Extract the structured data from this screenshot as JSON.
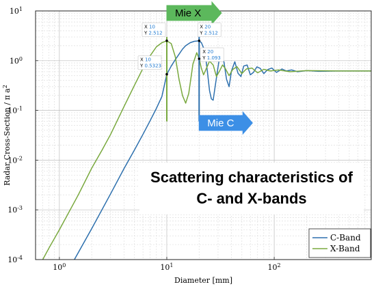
{
  "chart_data": {
    "type": "line",
    "title": "",
    "xlabel": "Diameter [mm]",
    "ylabel": "Radar Cross-Section / π a",
    "ylabel_exponent": "2",
    "xscale": "log",
    "yscale": "log",
    "xlim": [
      0.6,
      800
    ],
    "ylim": [
      0.0001,
      10
    ],
    "grid": true,
    "legend_position": "bottom-right",
    "x_ticks": [
      {
        "value": 1,
        "mantissa": "10",
        "exp": "0"
      },
      {
        "value": 10,
        "mantissa": "10",
        "exp": "1"
      },
      {
        "value": 100,
        "mantissa": "10",
        "exp": "2"
      }
    ],
    "y_ticks": [
      {
        "value": 0.0001,
        "mantissa": "10",
        "exp": "-4"
      },
      {
        "value": 0.001,
        "mantissa": "10",
        "exp": "-3"
      },
      {
        "value": 0.01,
        "mantissa": "10",
        "exp": "-2"
      },
      {
        "value": 0.1,
        "mantissa": "10",
        "exp": "-1"
      },
      {
        "value": 1,
        "mantissa": "10",
        "exp": "0"
      },
      {
        "value": 10,
        "mantissa": "10",
        "exp": "1"
      }
    ],
    "series": [
      {
        "name": "C-Band",
        "color": "#2c6fad",
        "points": [
          [
            1.38,
            0.0001
          ],
          [
            2,
            0.00042
          ],
          [
            3,
            0.0021
          ],
          [
            4,
            0.0068
          ],
          [
            5,
            0.016
          ],
          [
            6,
            0.033
          ],
          [
            7,
            0.062
          ],
          [
            8,
            0.11
          ],
          [
            9,
            0.19
          ],
          [
            10,
            0.5323
          ],
          [
            11,
            0.78
          ],
          [
            12,
            1.05
          ],
          [
            13,
            1.35
          ],
          [
            14,
            1.7
          ],
          [
            15,
            2.0
          ],
          [
            16.5,
            2.3
          ],
          [
            18,
            2.45
          ],
          [
            20,
            2.512
          ],
          [
            21,
            2.3
          ],
          [
            22,
            1.8
          ],
          [
            23,
            1.2
          ],
          [
            24,
            0.55
          ],
          [
            25,
            0.25
          ],
          [
            26,
            0.17
          ],
          [
            27,
            0.16
          ],
          [
            28.5,
            0.35
          ],
          [
            30.5,
            0.95
          ],
          [
            32.5,
            1.2
          ],
          [
            34,
            0.95
          ],
          [
            36,
            0.42
          ],
          [
            38,
            0.3
          ],
          [
            40,
            0.62
          ],
          [
            43,
            0.95
          ],
          [
            46,
            0.56
          ],
          [
            49,
            0.48
          ],
          [
            52,
            0.78
          ],
          [
            56,
            0.82
          ],
          [
            60,
            0.52
          ],
          [
            64,
            0.58
          ],
          [
            69,
            0.75
          ],
          [
            74,
            0.7
          ],
          [
            80,
            0.55
          ],
          [
            87,
            0.66
          ],
          [
            95,
            0.71
          ],
          [
            105,
            0.58
          ],
          [
            118,
            0.68
          ],
          [
            130,
            0.62
          ],
          [
            145,
            0.65
          ],
          [
            165,
            0.6
          ],
          [
            200,
            0.63
          ],
          [
            260,
            0.61
          ],
          [
            400,
            0.62
          ],
          [
            800,
            0.62
          ]
        ]
      },
      {
        "name": "X-Band",
        "color": "#78a83d",
        "points": [
          [
            0.7,
            0.0001
          ],
          [
            0.8,
            0.00017
          ],
          [
            1,
            0.0004
          ],
          [
            1.5,
            0.002
          ],
          [
            2,
            0.0069
          ],
          [
            2.5,
            0.016
          ],
          [
            3,
            0.033
          ],
          [
            4,
            0.12
          ],
          [
            5,
            0.32
          ],
          [
            6,
            0.7
          ],
          [
            7,
            1.25
          ],
          [
            8,
            1.9
          ],
          [
            9,
            2.3
          ],
          [
            10,
            2.512
          ],
          [
            11,
            2.2
          ],
          [
            12,
            1.2
          ],
          [
            13,
            0.42
          ],
          [
            14,
            0.2
          ],
          [
            15,
            0.14
          ],
          [
            16,
            0.22
          ],
          [
            17.5,
            0.85
          ],
          [
            19,
            1.45
          ],
          [
            20,
            1.093
          ],
          [
            21,
            0.7
          ],
          [
            22,
            0.52
          ],
          [
            23.5,
            0.72
          ],
          [
            25,
            0.98
          ],
          [
            27,
            0.82
          ],
          [
            29,
            0.48
          ],
          [
            31,
            0.62
          ],
          [
            33,
            0.82
          ],
          [
            35,
            0.7
          ],
          [
            38,
            0.5
          ],
          [
            41,
            0.66
          ],
          [
            45,
            0.76
          ],
          [
            50,
            0.55
          ],
          [
            55,
            0.68
          ],
          [
            62,
            0.71
          ],
          [
            70,
            0.57
          ],
          [
            80,
            0.67
          ],
          [
            92,
            0.62
          ],
          [
            110,
            0.65
          ],
          [
            140,
            0.6
          ],
          [
            200,
            0.63
          ],
          [
            400,
            0.62
          ],
          [
            800,
            0.62
          ]
        ]
      }
    ],
    "data_tips": [
      {
        "series": "X-Band",
        "x": 10,
        "y": 2.512,
        "x_label": "X",
        "x_text": "10",
        "y_label": "Y",
        "y_text": "2.512"
      },
      {
        "series": "C-Band",
        "x": 20,
        "y": 2.512,
        "x_label": "X",
        "x_text": "20",
        "y_label": "Y",
        "y_text": "2.512"
      },
      {
        "series": "C-Band",
        "x": 10,
        "y": 0.5323,
        "x_label": "X",
        "x_text": "10",
        "y_label": "Y",
        "y_text": "0.5323"
      },
      {
        "series": "X-Band",
        "x": 20,
        "y": 1.093,
        "x_label": "X",
        "x_text": "20",
        "y_label": "Y",
        "y_text": "1.093"
      }
    ],
    "annotations": [
      {
        "text": "Mie X",
        "color": "#5cb85c",
        "text_color": "#000000"
      },
      {
        "text": "Mie C",
        "color": "#3c8fe6",
        "text_color": "#ffffff"
      }
    ]
  },
  "overlay": {
    "line1": "Scattering characteristics of",
    "line2": "C- and X-bands"
  }
}
